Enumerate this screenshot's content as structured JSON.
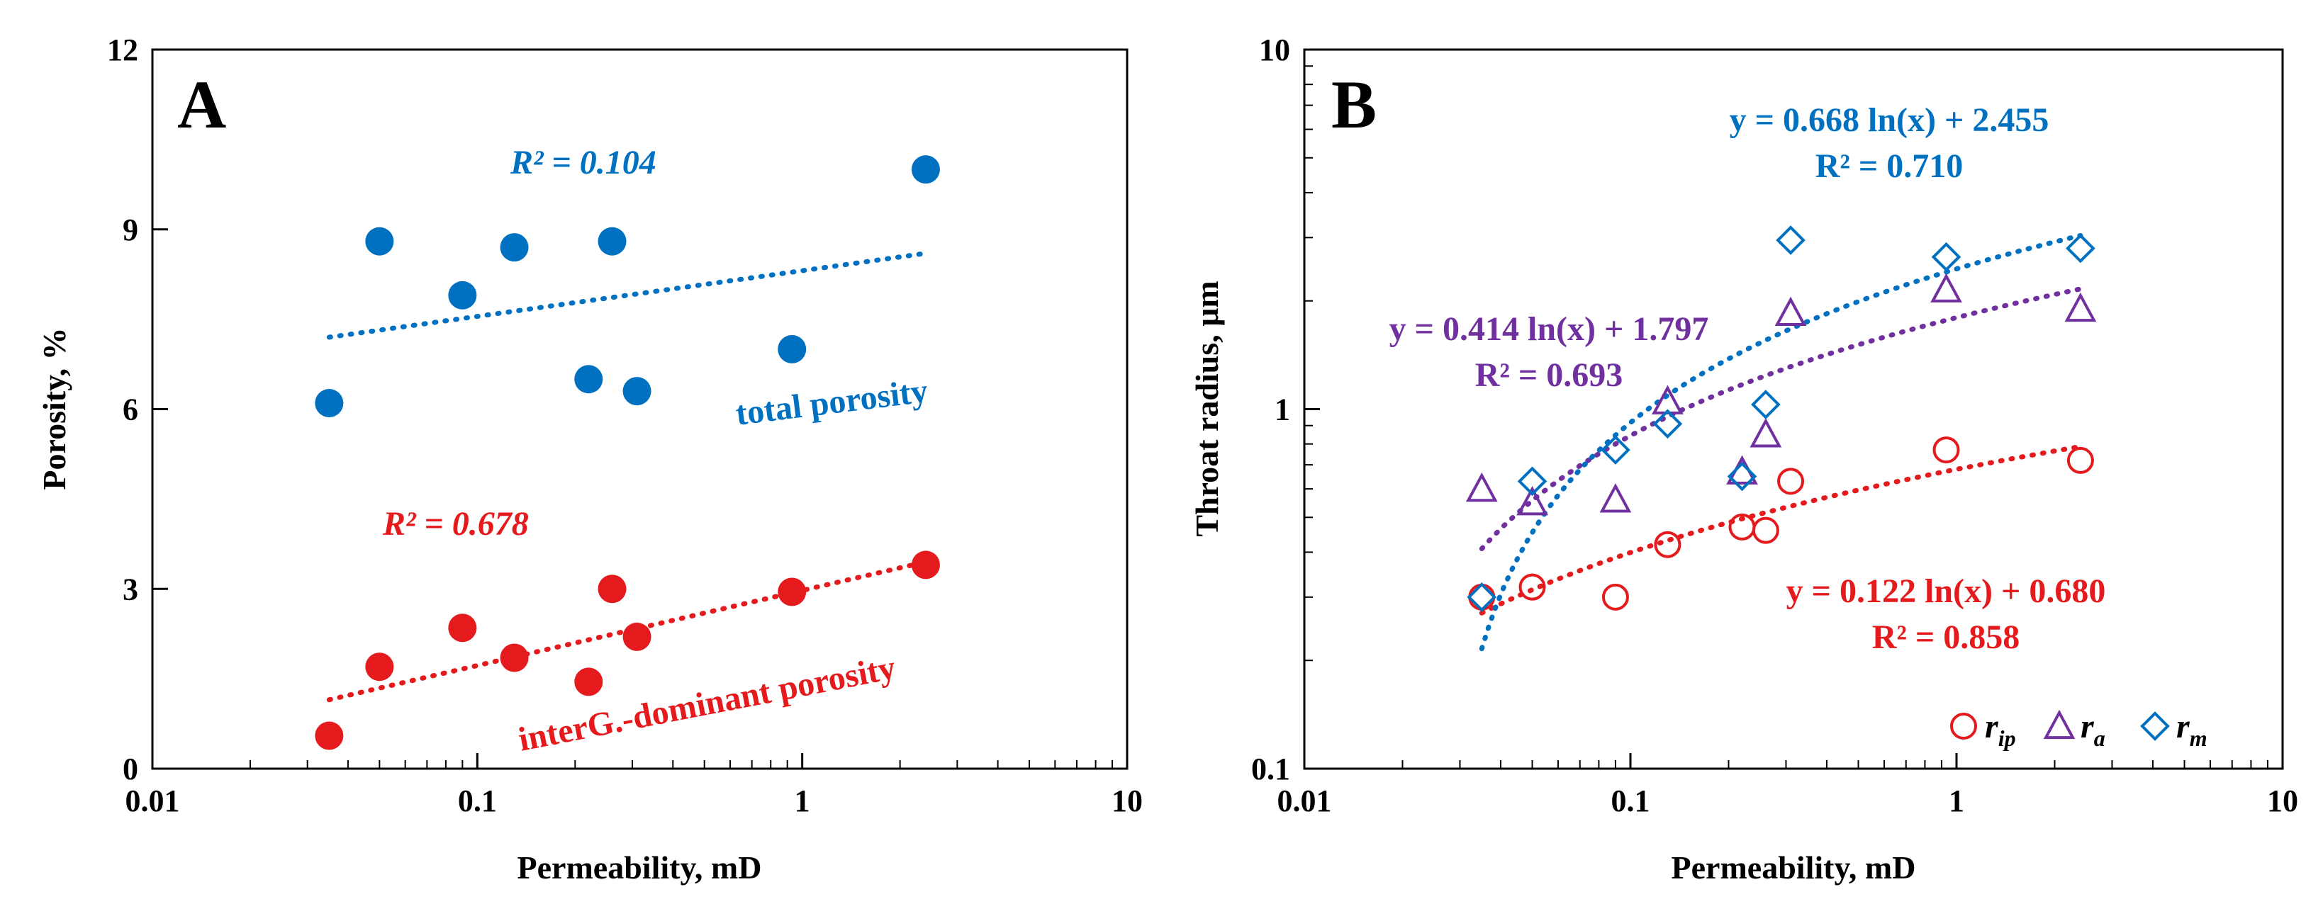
{
  "chart_data": [
    {
      "panel": "A",
      "type": "scatter",
      "xscale": "log",
      "xlabel": "Permeability, mD",
      "ylabel": "Porosity, %",
      "xlim": [
        0.01,
        10
      ],
      "ylim": [
        0,
        12
      ],
      "xticks": [
        "0.01",
        "0.1",
        "1",
        "10"
      ],
      "yticks": [
        "0",
        "3",
        "6",
        "9",
        "12"
      ],
      "colors": {
        "total": "#0070C0",
        "interG": "#E41A1C"
      },
      "series": [
        {
          "name": "total porosity",
          "color": "#0070C0",
          "r2_label": "R² = 0.104",
          "x": [
            0.035,
            0.05,
            0.09,
            0.13,
            0.22,
            0.26,
            0.31,
            0.93,
            2.4
          ],
          "y": [
            6.1,
            8.8,
            7.9,
            8.7,
            6.5,
            8.8,
            6.3,
            7.0,
            10.0
          ],
          "trend": {
            "x": [
              0.035,
              2.4
            ],
            "y": [
              7.2,
              8.6
            ]
          }
        },
        {
          "name": "interG.-dominant porosity",
          "color": "#E41A1C",
          "r2_label": "R² = 0.678",
          "x": [
            0.035,
            0.05,
            0.09,
            0.13,
            0.22,
            0.26,
            0.31,
            0.93,
            2.4
          ],
          "y": [
            0.55,
            1.7,
            2.35,
            1.85,
            1.45,
            3.0,
            2.2,
            2.95,
            3.4
          ],
          "trend": {
            "x": [
              0.035,
              2.4
            ],
            "y": [
              1.15,
              3.45
            ]
          }
        }
      ]
    },
    {
      "panel": "B",
      "type": "scatter",
      "xscale": "log",
      "yscale": "log",
      "xlabel": "Permeability, mD",
      "ylabel": "Throat radius, μm",
      "xlim": [
        0.01,
        10
      ],
      "ylim": [
        0.1,
        10
      ],
      "xticks": [
        "0.01",
        "0.1",
        "1",
        "10"
      ],
      "yticks": [
        "0.1",
        "1",
        "10"
      ],
      "series": [
        {
          "name": "r_ip",
          "legend_main": "r",
          "legend_sub": "ip",
          "marker": "circle",
          "color": "#E41A1C",
          "equation": "y = 0.122 ln(x) + 0.680",
          "r2_label": "R² = 0.858",
          "x": [
            0.035,
            0.05,
            0.09,
            0.13,
            0.22,
            0.26,
            0.31,
            0.93,
            2.4
          ],
          "y": [
            0.3,
            0.32,
            0.3,
            0.42,
            0.47,
            0.46,
            0.63,
            0.77,
            0.72
          ],
          "fit": {
            "a": 0.122,
            "b": 0.68
          }
        },
        {
          "name": "r_a",
          "legend_main": "r",
          "legend_sub": "a",
          "marker": "triangle",
          "color": "#7030A0",
          "equation": "y = 0.414 ln(x) + 1.797",
          "r2_label": "R² = 0.693",
          "x": [
            0.035,
            0.05,
            0.09,
            0.13,
            0.22,
            0.26,
            0.31,
            0.93,
            2.4
          ],
          "y": [
            0.6,
            0.55,
            0.56,
            1.05,
            0.67,
            0.85,
            1.85,
            2.15,
            1.9
          ],
          "fit": {
            "a": 0.414,
            "b": 1.797
          }
        },
        {
          "name": "r_m",
          "legend_main": "r",
          "legend_sub": "m",
          "marker": "diamond",
          "color": "#0070C0",
          "equation": "y = 0.668 ln(x) + 2.455",
          "r2_label": "R² = 0.710",
          "x": [
            0.035,
            0.05,
            0.09,
            0.13,
            0.22,
            0.26,
            0.31,
            0.93,
            2.4
          ],
          "y": [
            0.3,
            0.63,
            0.77,
            0.91,
            0.65,
            1.03,
            2.95,
            2.65,
            2.8
          ],
          "fit": {
            "a": 0.668,
            "b": 2.455
          }
        }
      ]
    }
  ],
  "annotations": {
    "A": {
      "panel_letter": "A",
      "total_r2": "R² = 0.104",
      "total_label": "total porosity",
      "interG_r2": "R² = 0.678",
      "interG_label": "interG.-dominant porosity"
    },
    "B": {
      "panel_letter": "B",
      "rm_equation": "y = 0.668 ln(x) + 2.455",
      "rm_r2": "R² = 0.710",
      "ra_equation": "y = 0.414 ln(x) + 1.797",
      "ra_r2": "R² = 0.693",
      "rip_equation": "y = 0.122 ln(x) + 0.680",
      "rip_r2": "R² = 0.858"
    }
  }
}
